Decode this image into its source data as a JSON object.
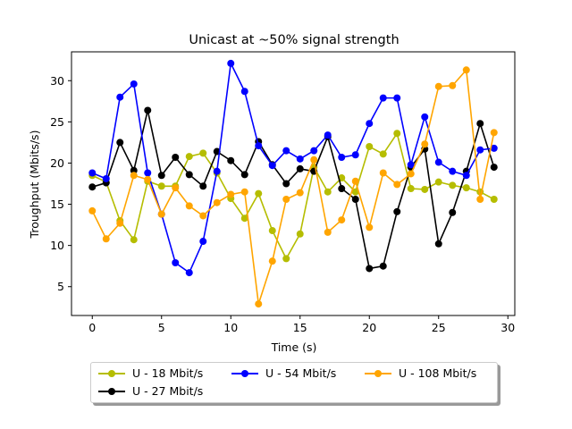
{
  "chart_data": {
    "type": "line",
    "title": "Unicast  at ~50% signal strength",
    "xlabel": "Time (s)",
    "ylabel": "Troughput (Mbits/s)",
    "xlim": [
      -1.5,
      30.5
    ],
    "ylim": [
      1.5,
      33.5
    ],
    "xticks": [
      0,
      5,
      10,
      15,
      20,
      25,
      30
    ],
    "yticks": [
      5,
      10,
      15,
      20,
      25,
      30
    ],
    "grid": false,
    "legend_position": "below plot",
    "x": [
      0,
      1,
      2,
      3,
      4,
      5,
      6,
      7,
      8,
      9,
      10,
      11,
      12,
      13,
      14,
      15,
      16,
      17,
      18,
      19,
      20,
      21,
      22,
      23,
      24,
      25,
      26,
      27,
      28,
      29
    ],
    "series": [
      {
        "name": "U - 18 Mbit/s",
        "color": "#b5bd00",
        "values": [
          18.5,
          17.7,
          13.0,
          10.7,
          17.8,
          17.2,
          17.2,
          20.8,
          21.2,
          18.8,
          15.7,
          13.3,
          16.3,
          11.8,
          8.4,
          11.4,
          19.5,
          16.5,
          18.2,
          16.5,
          22.0,
          21.1,
          23.6,
          16.9,
          16.8,
          17.7,
          17.3,
          17.0,
          16.5,
          15.6
        ]
      },
      {
        "name": "U - 27 Mbit/s",
        "color": "#000000",
        "values": [
          17.1,
          17.6,
          22.5,
          19.1,
          26.4,
          18.5,
          20.7,
          18.6,
          17.2,
          21.4,
          20.3,
          18.6,
          22.6,
          19.8,
          17.5,
          19.3,
          19.0,
          23.2,
          16.9,
          15.6,
          7.2,
          7.5,
          14.1,
          19.5,
          21.7,
          10.2,
          14.0,
          19.0,
          24.8,
          19.5
        ]
      },
      {
        "name": "U - 54 Mbit/s",
        "color": "#0000ff",
        "values": [
          18.8,
          18.1,
          28.0,
          29.6,
          18.8,
          13.8,
          7.9,
          6.7,
          10.5,
          19.0,
          32.1,
          28.7,
          22.1,
          19.7,
          21.5,
          20.5,
          21.5,
          23.4,
          20.7,
          21.0,
          24.8,
          27.9,
          27.9,
          19.8,
          25.6,
          20.1,
          19.0,
          18.5,
          21.6,
          21.8
        ]
      },
      {
        "name": "U - 108 Mbit/s",
        "color": "#ffa500",
        "values": [
          14.2,
          10.8,
          12.7,
          18.5,
          18.0,
          13.8,
          17.0,
          14.8,
          13.6,
          15.2,
          16.2,
          16.5,
          2.9,
          8.1,
          15.6,
          16.4,
          20.4,
          11.6,
          13.1,
          17.8,
          12.2,
          18.8,
          17.4,
          18.7,
          22.3,
          29.3,
          29.4,
          31.3,
          15.6,
          23.7
        ]
      }
    ],
    "legend_order": [
      0,
      2,
      3,
      1
    ]
  }
}
